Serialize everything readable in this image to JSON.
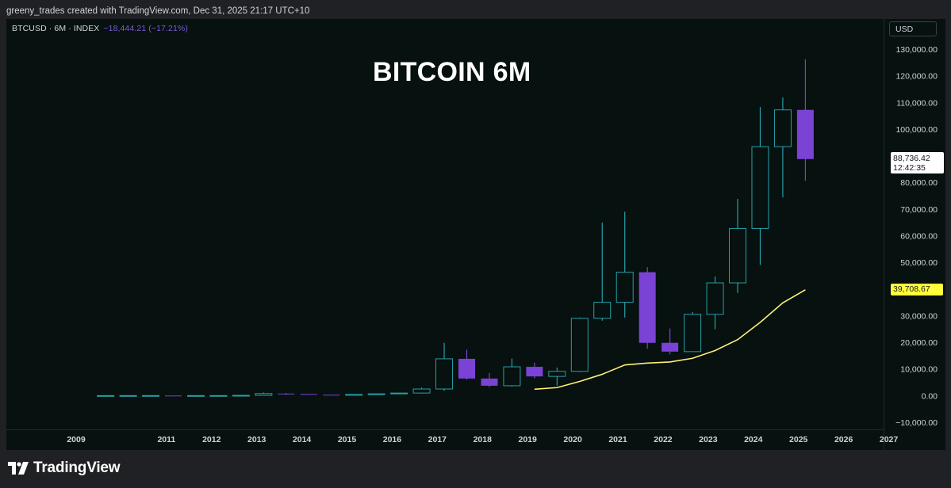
{
  "header": {
    "attribution": "greeny_trades created with TradingView.com, Dec 31, 2025 21:17 UTC+10"
  },
  "legend": {
    "symbol": "BTCUSD · 6M · INDEX",
    "change": "−18,444.21 (−17.21%)"
  },
  "overlay_title": "BITCOIN 6M",
  "currency_button": "USD",
  "last_price": {
    "value": "88,736.42",
    "countdown": "12:42:35"
  },
  "ma_label": "39,708.67",
  "footer": {
    "brand": "TradingView"
  },
  "colors": {
    "background": "#07110f",
    "up_candle": "#26a0a8",
    "down_candle": "#7b42d6",
    "moving_average": "#fff176",
    "axis_text": "#d1d4dc"
  },
  "chart_data": {
    "type": "candlestick",
    "interval": "6M",
    "y_range": [
      -10000,
      130000
    ],
    "y_ticks": [
      -10000,
      0,
      10000,
      20000,
      30000,
      40000,
      50000,
      60000,
      70000,
      80000,
      90000,
      100000,
      110000,
      120000,
      130000
    ],
    "y_tick_labels": [
      "−10,000.00",
      "0.00",
      "10,000.00",
      "20,000.00",
      "30,000.00",
      "40,000.00",
      "50,000.00",
      "60,000.00",
      "70,000.00",
      "80,000.00",
      "90,000.00",
      "100,000.00",
      "110,000.00",
      "120,000.00",
      "130,000.00"
    ],
    "x_range": [
      2009.0,
      2027.5
    ],
    "x_ticks": [
      2009,
      2011,
      2012,
      2013,
      2014,
      2015,
      2016,
      2017,
      2018,
      2019,
      2020,
      2021,
      2022,
      2023,
      2024,
      2025,
      2026,
      2027
    ],
    "x_tick_labels": [
      "2009",
      "2011",
      "2012",
      "2013",
      "2014",
      "2015",
      "2016",
      "2017",
      "2018",
      "2019",
      "2020",
      "2021",
      "2022",
      "2023",
      "2024",
      "2025",
      "2026",
      "2027"
    ],
    "candles": [
      {
        "t": 2010.0,
        "o": 0,
        "h": 0,
        "l": 0,
        "c": 0
      },
      {
        "t": 2010.5,
        "o": 0,
        "h": 0,
        "l": 0,
        "c": 0
      },
      {
        "t": 2011.0,
        "o": 0,
        "h": 30,
        "l": 0,
        "c": 17
      },
      {
        "t": 2011.5,
        "o": 17,
        "h": 20,
        "l": 2,
        "c": 4
      },
      {
        "t": 2012.0,
        "o": 4,
        "h": 7,
        "l": 4,
        "c": 7
      },
      {
        "t": 2012.5,
        "o": 7,
        "h": 16,
        "l": 7,
        "c": 13
      },
      {
        "t": 2013.0,
        "o": 13,
        "h": 266,
        "l": 13,
        "c": 97
      },
      {
        "t": 2013.5,
        "o": 97,
        "h": 1150,
        "l": 65,
        "c": 750
      },
      {
        "t": 2014.0,
        "o": 750,
        "h": 1000,
        "l": 350,
        "c": 600
      },
      {
        "t": 2014.5,
        "o": 600,
        "h": 650,
        "l": 300,
        "c": 320
      },
      {
        "t": 2015.0,
        "o": 320,
        "h": 320,
        "l": 160,
        "c": 260
      },
      {
        "t": 2015.5,
        "o": 260,
        "h": 470,
        "l": 200,
        "c": 430
      },
      {
        "t": 2016.0,
        "o": 430,
        "h": 780,
        "l": 350,
        "c": 670
      },
      {
        "t": 2016.5,
        "o": 670,
        "h": 980,
        "l": 480,
        "c": 960
      },
      {
        "t": 2017.0,
        "o": 960,
        "h": 3000,
        "l": 750,
        "c": 2480
      },
      {
        "t": 2017.5,
        "o": 2480,
        "h": 19800,
        "l": 1800,
        "c": 13800
      },
      {
        "t": 2018.0,
        "o": 13800,
        "h": 17200,
        "l": 5900,
        "c": 6400
      },
      {
        "t": 2018.5,
        "o": 6400,
        "h": 8500,
        "l": 3200,
        "c": 3700
      },
      {
        "t": 2019.0,
        "o": 3700,
        "h": 13900,
        "l": 3400,
        "c": 10800
      },
      {
        "t": 2019.5,
        "o": 10800,
        "h": 12400,
        "l": 6500,
        "c": 7200
      },
      {
        "t": 2020.0,
        "o": 7200,
        "h": 10500,
        "l": 3800,
        "c": 9100
      },
      {
        "t": 2020.5,
        "o": 9100,
        "h": 29300,
        "l": 8900,
        "c": 29000
      },
      {
        "t": 2021.0,
        "o": 29000,
        "h": 64900,
        "l": 28100,
        "c": 35000
      },
      {
        "t": 2021.5,
        "o": 35000,
        "h": 69000,
        "l": 29300,
        "c": 46300
      },
      {
        "t": 2022.0,
        "o": 46300,
        "h": 48200,
        "l": 17600,
        "c": 19800
      },
      {
        "t": 2022.5,
        "o": 19800,
        "h": 25200,
        "l": 15500,
        "c": 16500
      },
      {
        "t": 2023.0,
        "o": 16500,
        "h": 31400,
        "l": 16500,
        "c": 30500
      },
      {
        "t": 2023.5,
        "o": 30500,
        "h": 44700,
        "l": 24900,
        "c": 42300
      },
      {
        "t": 2024.0,
        "o": 42300,
        "h": 73800,
        "l": 38500,
        "c": 62700
      },
      {
        "t": 2024.5,
        "o": 62700,
        "h": 108300,
        "l": 49000,
        "c": 93400
      },
      {
        "t": 2025.0,
        "o": 93400,
        "h": 111900,
        "l": 74400,
        "c": 107200
      },
      {
        "t": 2025.5,
        "o": 107200,
        "h": 126200,
        "l": 80600,
        "c": 88736.42
      }
    ],
    "moving_average": {
      "points": [
        [
          2019.5,
          2400
        ],
        [
          2020.0,
          3000
        ],
        [
          2020.5,
          5300
        ],
        [
          2021.0,
          8000
        ],
        [
          2021.5,
          11500
        ],
        [
          2022.0,
          12200
        ],
        [
          2022.5,
          12600
        ],
        [
          2023.0,
          14000
        ],
        [
          2023.5,
          16900
        ],
        [
          2024.0,
          21000
        ],
        [
          2024.5,
          27500
        ],
        [
          2025.0,
          34800
        ],
        [
          2025.5,
          39708.67
        ]
      ]
    },
    "last_price": 88736.42
  }
}
